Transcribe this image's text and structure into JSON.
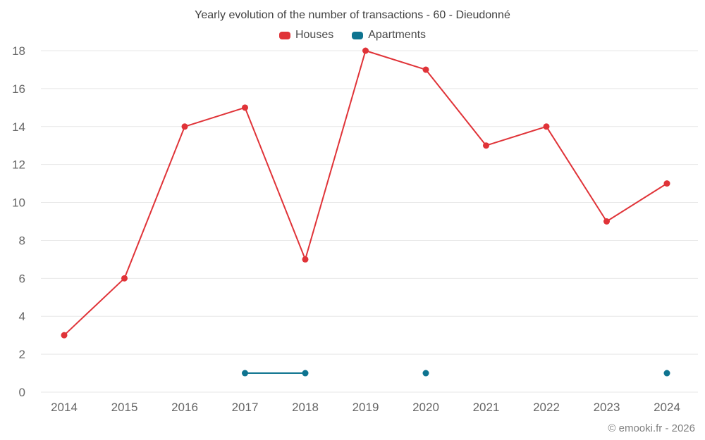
{
  "chart": {
    "title": "Yearly evolution of the number of transactions - 60 - Dieudonné",
    "watermark": "© emooki.fr - 2026",
    "series_labels": {
      "houses": "Houses",
      "apartments": "Apartments"
    }
  },
  "chart_data": {
    "type": "line",
    "title": "Yearly evolution of the number of transactions - 60 - Dieudonné",
    "categories": [
      "2014",
      "2015",
      "2016",
      "2017",
      "2018",
      "2019",
      "2020",
      "2021",
      "2022",
      "2023",
      "2024"
    ],
    "series": [
      {
        "name": "Houses",
        "color": "#e03338",
        "values": [
          3,
          6,
          14,
          15,
          7,
          18,
          17,
          13,
          14,
          9,
          11
        ]
      },
      {
        "name": "Apartments",
        "color": "#0e7490",
        "values": [
          null,
          null,
          null,
          1,
          1,
          null,
          1,
          null,
          null,
          null,
          1
        ]
      }
    ],
    "xlabel": "",
    "ylabel": "",
    "ylim": [
      0,
      18
    ],
    "ytick_step": 2,
    "grid": true,
    "legend_position": "top"
  }
}
